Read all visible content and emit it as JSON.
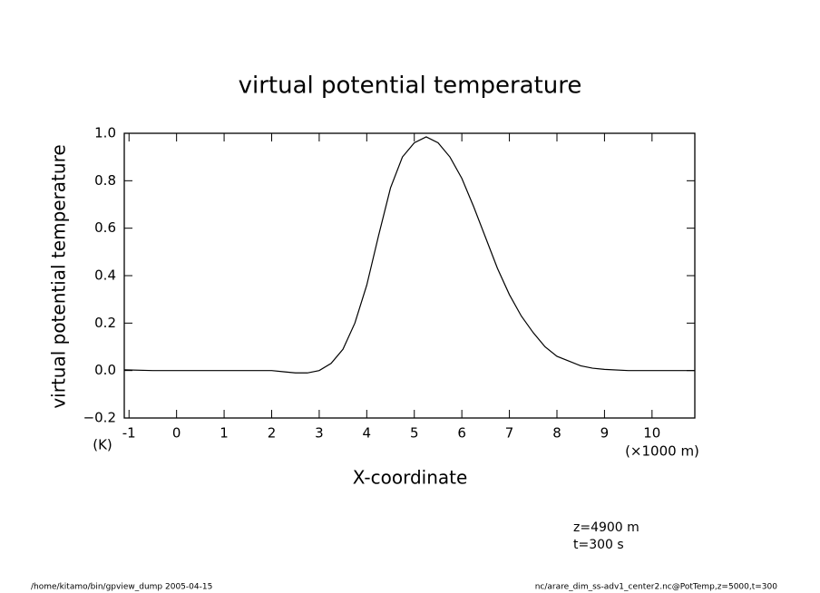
{
  "chart_data": {
    "type": "line",
    "title": "virtual potential temperature",
    "ylabel": "virtual potential temperature",
    "yunit": "(K)",
    "xlabel": "X-coordinate",
    "xunit": "(×1000 m)",
    "annotations": [
      "z=4900 m",
      "t=300 s"
    ],
    "footer_left": "/home/kitamo/bin/gpview_dump  2005-04-15",
    "footer_right": "nc/arare_dim_ss-adv1_center2.nc@PotTemp,z=5000,t=300",
    "x": [
      -1.1,
      -0.5,
      0,
      0.5,
      1,
      1.5,
      2,
      2.25,
      2.5,
      2.75,
      3,
      3.25,
      3.5,
      3.75,
      4,
      4.25,
      4.5,
      4.75,
      5,
      5.25,
      5.5,
      5.75,
      6,
      6.25,
      6.5,
      6.75,
      7,
      7.25,
      7.5,
      7.75,
      8,
      8.25,
      8.5,
      8.75,
      9,
      9.5,
      10,
      10.9
    ],
    "series": [
      {
        "name": "virtual potential temperature",
        "color": "#000000",
        "values": [
          0.003,
          0,
          0,
          0,
          0,
          0,
          0,
          -0.005,
          -0.01,
          -0.01,
          0.0,
          0.03,
          0.09,
          0.2,
          0.36,
          0.57,
          0.77,
          0.9,
          0.96,
          0.985,
          0.96,
          0.9,
          0.81,
          0.69,
          0.56,
          0.43,
          0.32,
          0.23,
          0.16,
          0.1,
          0.06,
          0.04,
          0.02,
          0.01,
          0.005,
          0,
          0,
          0
        ]
      }
    ],
    "xlim": [
      -1.1,
      10.9
    ],
    "ylim": [
      -0.2,
      1.0
    ],
    "xticks": [
      -1,
      0,
      1,
      2,
      3,
      4,
      5,
      6,
      7,
      8,
      9,
      10
    ],
    "yticks": [
      {
        "value": -0.2,
        "label": "−0.2"
      },
      {
        "value": 0,
        "label": "0.0"
      },
      {
        "value": 0.2,
        "label": "0.2"
      },
      {
        "value": 0.4,
        "label": "0.4"
      },
      {
        "value": 0.6,
        "label": "0.6"
      },
      {
        "value": 0.8,
        "label": "0.8"
      },
      {
        "value": 1,
        "label": "1.0"
      }
    ],
    "grid": false
  }
}
